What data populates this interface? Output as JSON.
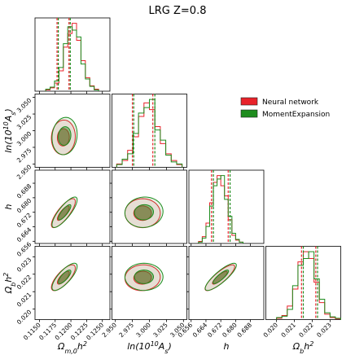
{
  "chart_data": {
    "type": "corner",
    "title": "LRG Z=0.8",
    "hist_ylim": [
      0,
      1.08
    ],
    "parameters": [
      {
        "label": [
          {
            "text": "Ω"
          },
          {
            "text": "m,0",
            "style": "sub"
          },
          {
            "text": "h"
          },
          {
            "text": "2",
            "style": "sup"
          }
        ],
        "lim": [
          0.1143,
          0.1262
        ],
        "ticks": [
          {
            "value": 0.115,
            "label": "0.1150"
          },
          0.1175,
          {
            "value": 0.12,
            "label": "0.1200"
          },
          0.1225,
          {
            "value": 0.125,
            "label": "0.1250"
          }
        ]
      },
      {
        "label": [
          {
            "text": "ln(10"
          },
          {
            "text": "10",
            "style": "sup"
          },
          {
            "text": "A"
          },
          {
            "text": "s",
            "style": "sub"
          },
          {
            "text": ")"
          }
        ],
        "lim": [
          2.945,
          3.055
        ],
        "ticks": [
          {
            "value": 2.95,
            "label": "2.950"
          },
          2.975,
          {
            "value": 3.0,
            "label": "3.000"
          },
          3.025,
          {
            "value": 3.05,
            "label": "3.050"
          }
        ]
      },
      {
        "label": [
          {
            "text": "h"
          }
        ],
        "lim": [
          0.6548,
          0.6952
        ],
        "ticks": [
          0.656,
          0.664,
          0.672,
          {
            "value": 0.68,
            "label": "0.680"
          },
          0.688
        ]
      },
      {
        "label": [
          {
            "text": "Ω"
          },
          {
            "text": "b",
            "style": "sub"
          },
          {
            "text": "h"
          },
          {
            "text": "2",
            "style": "sup"
          }
        ],
        "lim": [
          0.0194,
          0.0236
        ],
        "ticks": [
          {
            "value": 0.02,
            "label": "0.020"
          },
          0.021,
          0.022,
          0.023
        ]
      }
    ],
    "series": [
      {
        "name": "Neural network",
        "color": "#e8222a",
        "hist": [
          {
            "bins": [
              0.116,
              0.1167,
              0.1174,
              0.1181,
              0.1188,
              0.1195,
              0.1202,
              0.1209,
              0.1216,
              0.1223,
              0.123,
              0.1237,
              0.1244
            ],
            "counts": [
              0.02,
              0.05,
              0.12,
              0.3,
              0.65,
              0.85,
              1.0,
              0.75,
              0.45,
              0.2,
              0.08,
              0.03
            ]
          },
          {
            "bins": [
              2.952,
              2.96,
              2.968,
              2.976,
              2.984,
              2.992,
              3.0,
              3.008,
              3.016,
              3.024,
              3.032,
              3.04,
              3.048
            ],
            "counts": [
              0.05,
              0.1,
              0.25,
              0.45,
              0.75,
              0.95,
              0.85,
              0.6,
              0.35,
              0.2,
              0.1,
              0.04
            ]
          },
          {
            "bins": [
              0.66,
              0.662,
              0.664,
              0.666,
              0.668,
              0.67,
              0.672,
              0.674,
              0.676,
              0.678,
              0.68,
              0.682,
              0.684
            ],
            "counts": [
              0.03,
              0.1,
              0.3,
              0.6,
              0.9,
              1.0,
              0.85,
              0.7,
              0.35,
              0.12,
              0.05,
              0.02
            ]
          },
          {
            "bins": [
              0.02,
              0.0203,
              0.0206,
              0.0209,
              0.0212,
              0.0215,
              0.0218,
              0.0221,
              0.0224,
              0.0227,
              0.023,
              0.0233,
              0.0236
            ],
            "counts": [
              0.02,
              0.06,
              0.2,
              0.45,
              0.85,
              1.0,
              0.9,
              0.55,
              0.25,
              0.08,
              0.03,
              0.01
            ]
          }
        ],
        "quantiles": [
          [
            0.1178,
            0.1197
          ],
          [
            2.975,
            3.005
          ],
          [
            0.667,
            0.676
          ],
          [
            0.0214,
            0.0222
          ]
        ],
        "contours": [
          {
            "center": [
              0.1188,
              2.99
            ],
            "sigma": [
              0.00095,
              0.013
            ],
            "rho": 0.05
          },
          {
            "center": [
              0.1188,
              0.6715
            ],
            "sigma": [
              0.00095,
              0.004
            ],
            "rho": 0.8
          },
          {
            "center": [
              2.99,
              0.6715
            ],
            "sigma": [
              0.013,
              0.004
            ],
            "rho": 0.0
          },
          {
            "center": [
              0.1188,
              0.0218
            ],
            "sigma": [
              0.00095,
              0.00037
            ],
            "rho": 0.75
          },
          {
            "center": [
              2.99,
              0.0218
            ],
            "sigma": [
              0.013,
              0.00037
            ],
            "rho": 0.05
          },
          {
            "center": [
              0.6715,
              0.0218
            ],
            "sigma": [
              0.004,
              0.00037
            ],
            "rho": 0.85
          }
        ]
      },
      {
        "name": "MomentExpansion",
        "color": "#1e8c1e",
        "hist": [
          {
            "bins": [
              0.116,
              0.1167,
              0.1174,
              0.1181,
              0.1188,
              0.1195,
              0.1202,
              0.1209,
              0.1216,
              0.1223,
              0.123,
              0.1237,
              0.1244
            ],
            "counts": [
              0.03,
              0.06,
              0.15,
              0.35,
              0.7,
              0.95,
              0.9,
              0.8,
              0.4,
              0.18,
              0.07,
              0.02
            ]
          },
          {
            "bins": [
              2.952,
              2.96,
              2.968,
              2.976,
              2.984,
              2.992,
              3.0,
              3.008,
              3.016,
              3.024,
              3.032,
              3.04,
              3.048
            ],
            "counts": [
              0.04,
              0.12,
              0.2,
              0.5,
              0.8,
              0.88,
              1.0,
              0.55,
              0.4,
              0.18,
              0.08,
              0.05
            ]
          },
          {
            "bins": [
              0.66,
              0.662,
              0.664,
              0.666,
              0.668,
              0.67,
              0.672,
              0.674,
              0.676,
              0.678,
              0.68,
              0.682,
              0.684
            ],
            "counts": [
              0.02,
              0.08,
              0.25,
              0.55,
              0.85,
              0.95,
              1.0,
              0.65,
              0.4,
              0.15,
              0.06,
              0.02
            ]
          },
          {
            "bins": [
              0.02,
              0.0203,
              0.0206,
              0.0209,
              0.0212,
              0.0215,
              0.0218,
              0.0221,
              0.0224,
              0.0227,
              0.023,
              0.0233,
              0.0236
            ],
            "counts": [
              0.03,
              0.05,
              0.15,
              0.5,
              0.8,
              0.9,
              1.0,
              0.6,
              0.3,
              0.1,
              0.04,
              0.02
            ]
          }
        ],
        "quantiles": [
          [
            0.118,
            0.1199
          ],
          [
            2.977,
            3.008
          ],
          [
            0.668,
            0.677
          ],
          [
            0.0215,
            0.0223
          ]
        ],
        "contours": [
          {
            "center": [
              0.119,
              2.992
            ],
            "sigma": [
              0.001,
              0.014
            ],
            "rho": 0.1
          },
          {
            "center": [
              0.119,
              0.672
            ],
            "sigma": [
              0.001,
              0.0042
            ],
            "rho": 0.82
          },
          {
            "center": [
              2.992,
              0.672
            ],
            "sigma": [
              0.014,
              0.0042
            ],
            "rho": 0.05
          },
          {
            "center": [
              0.119,
              0.02185
            ],
            "sigma": [
              0.001,
              0.00039
            ],
            "rho": 0.78
          },
          {
            "center": [
              2.992,
              0.02185
            ],
            "sigma": [
              0.014,
              0.00039
            ],
            "rho": 0.0
          },
          {
            "center": [
              0.672,
              0.02185
            ],
            "sigma": [
              0.0042,
              0.00039
            ],
            "rho": 0.85
          }
        ]
      }
    ]
  }
}
